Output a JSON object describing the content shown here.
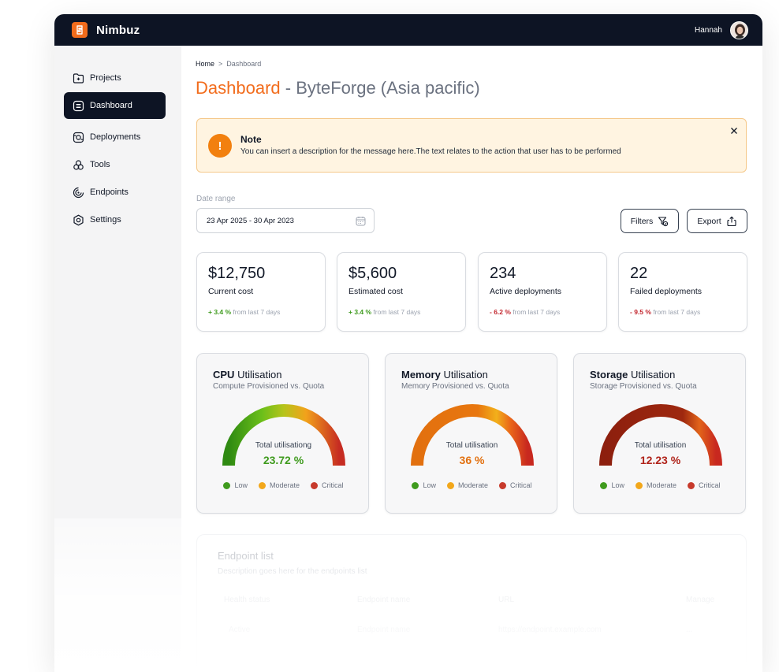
{
  "app": {
    "name": "Nimbuz",
    "user": "Hannah",
    "logo_color": "#f26c1c"
  },
  "sidebar": {
    "items": [
      {
        "label": "Projects",
        "icon": "folder-plus-icon",
        "active": false
      },
      {
        "label": "Dashboard",
        "icon": "dashboard-icon",
        "active": true
      },
      {
        "label": "Deployments",
        "icon": "deployments-icon",
        "active": false
      },
      {
        "label": "Tools",
        "icon": "tools-icon",
        "active": false
      },
      {
        "label": "Endpoints",
        "icon": "endpoints-icon",
        "active": false
      },
      {
        "label": "Settings",
        "icon": "settings-icon",
        "active": false
      }
    ]
  },
  "breadcrumb": {
    "home": "Home",
    "separator": ">",
    "current": "Dashboard"
  },
  "page": {
    "title": "Dashboard",
    "subtitle": " - ByteForge (Asia pacific)"
  },
  "note": {
    "title": "Note",
    "description": "You can insert a description for the message here.The text relates to the action that user has to be performed",
    "icon_glyph": "!"
  },
  "date_range": {
    "label": "Date range",
    "value": "23 Apr 2025 - 30 Apr 2023"
  },
  "toolbar": {
    "filters_label": "Filters",
    "export_label": "Export"
  },
  "stats": [
    {
      "value": "$12,750",
      "label": "Current cost",
      "change": "+ 3.4 %",
      "change_suffix": " from last 7 days",
      "trend": "up"
    },
    {
      "value": "$5,600",
      "label": "Estimated cost",
      "change": "+ 3.4 %",
      "change_suffix": " from last 7 days",
      "trend": "up"
    },
    {
      "value": "234",
      "label": "Active deployments",
      "change": "- 6.2 %",
      "change_suffix": " from last 7 days",
      "trend": "down"
    },
    {
      "value": "22",
      "label": "Failed deployments",
      "change": "- 9.5 %",
      "change_suffix": " from last 7 days",
      "trend": "down"
    }
  ],
  "legend": {
    "low": {
      "label": "Low",
      "color": "#3f9b1e"
    },
    "moderate": {
      "label": "Moderate",
      "color": "#f2a71b"
    },
    "critical": {
      "label": "Critical",
      "color": "#c73a2c"
    }
  },
  "gauges": [
    {
      "title_bold": "CPU",
      "title_rest": " Utilisation",
      "subtitle": "Compute Provisioned vs. Quota",
      "center_label": "Total utilisationg",
      "value_text": "23.72 %",
      "value_color": "#3f9b1e"
    },
    {
      "title_bold": "Memory",
      "title_rest": " Utilisation",
      "subtitle": "Memory Provisioned vs. Quota",
      "center_label": "Total utilisation",
      "value_text": "36 %",
      "value_color": "#e2700f"
    },
    {
      "title_bold": "Storage",
      "title_rest": " Utilisation",
      "subtitle": "Storage Provisioned vs. Quota",
      "center_label": "Total utilisation",
      "value_text": "12.23 %",
      "value_color": "#b0231a"
    }
  ],
  "endpoint_list": {
    "title": "Endpoint list",
    "description": "Description goes here for the endpoints list",
    "columns": [
      "Health status",
      "Endpoint name",
      "URL",
      "Manage"
    ],
    "rows": [
      {
        "status": "Active",
        "name": "Endpoint name",
        "url": "https://endpoint.example.com",
        "manage": "..."
      }
    ]
  }
}
